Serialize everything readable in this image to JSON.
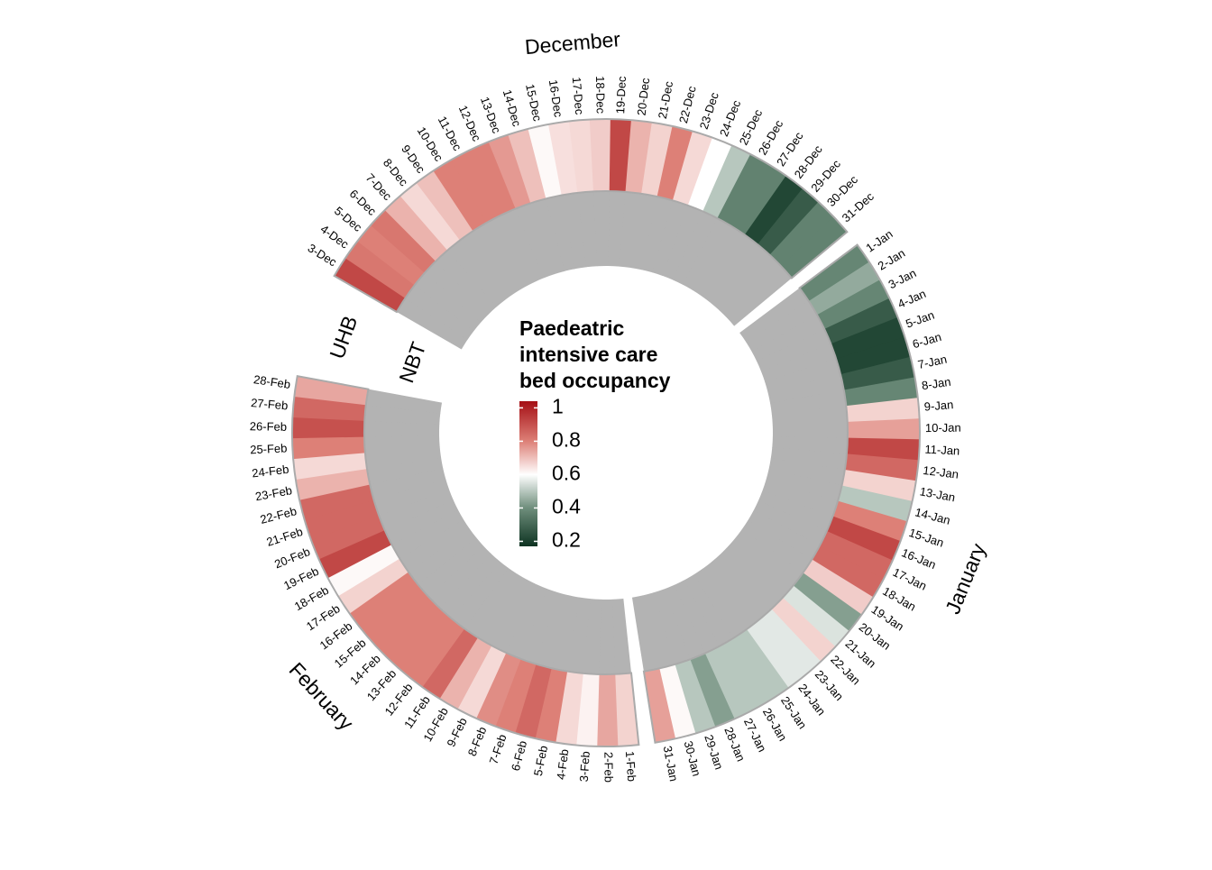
{
  "chart_data": {
    "type": "circular-heatmap",
    "legend_title": [
      "Paedeatric",
      "intensive care",
      "bed occupancy"
    ],
    "tracks": [
      "UHB",
      "NBT"
    ],
    "na_color": "#b3b3b3",
    "border_color": "#aaaaaa",
    "clim": [
      0.17,
      1.04
    ],
    "cticks": [
      0.2,
      0.4,
      0.6,
      0.8,
      1
    ],
    "color_stops": [
      {
        "value": 0.17,
        "color": "#0d3321"
      },
      {
        "value": 0.4,
        "color": "#6f8e7c"
      },
      {
        "value": 0.6,
        "color": "#ffffff"
      },
      {
        "value": 0.8,
        "color": "#dd8077"
      },
      {
        "value": 1.04,
        "color": "#a50f15"
      }
    ],
    "sectors": [
      {
        "name": "December",
        "categories": [
          "3-Dec",
          "4-Dec",
          "5-Dec",
          "6-Dec",
          "7-Dec",
          "8-Dec",
          "9-Dec",
          "10-Dec",
          "11-Dec",
          "12-Dec",
          "13-Dec",
          "14-Dec",
          "15-Dec",
          "16-Dec",
          "17-Dec",
          "18-Dec",
          "19-Dec",
          "20-Dec",
          "21-Dec",
          "22-Dec",
          "23-Dec",
          "24-Dec",
          "25-Dec",
          "26-Dec",
          "27-Dec",
          "28-Dec",
          "29-Dec",
          "30-Dec",
          "31-Dec"
        ],
        "values": [
          [
            0.92,
            0.82,
            0.8,
            0.82,
            0.72,
            0.66,
            0.7,
            0.8,
            0.8,
            0.8,
            0.76,
            0.7,
            0.61,
            0.65,
            0.66,
            0.68,
            0.92,
            0.72,
            0.67,
            0.8,
            0.66,
            0.6,
            0.5,
            0.37,
            0.37,
            0.22,
            0.27,
            0.37,
            0.37
          ],
          [
            null,
            null,
            null,
            null,
            null,
            null,
            null,
            null,
            null,
            null,
            null,
            null,
            null,
            null,
            null,
            null,
            null,
            null,
            null,
            null,
            null,
            null,
            null,
            null,
            null,
            null,
            null,
            null,
            null
          ]
        ]
      },
      {
        "name": "January",
        "categories": [
          "1-Jan",
          "2-Jan",
          "3-Jan",
          "4-Jan",
          "5-Jan",
          "6-Jan",
          "7-Jan",
          "8-Jan",
          "9-Jan",
          "10-Jan",
          "11-Jan",
          "12-Jan",
          "13-Jan",
          "14-Jan",
          "15-Jan",
          "16-Jan",
          "17-Jan",
          "18-Jan",
          "19-Jan",
          "20-Jan",
          "21-Jan",
          "22-Jan",
          "23-Jan",
          "24-Jan",
          "25-Jan",
          "26-Jan",
          "27-Jan",
          "28-Jan",
          "29-Jan",
          "30-Jan",
          "31-Jan"
        ],
        "values": [
          [
            0.38,
            0.45,
            0.38,
            0.27,
            0.22,
            0.22,
            0.27,
            0.38,
            0.67,
            0.75,
            0.92,
            0.85,
            0.67,
            0.5,
            0.8,
            0.92,
            0.85,
            0.85,
            0.68,
            0.43,
            0.55,
            0.67,
            0.56,
            0.56,
            0.5,
            0.5,
            0.5,
            0.43,
            0.5,
            0.61,
            0.75
          ],
          [
            null,
            null,
            null,
            null,
            null,
            null,
            null,
            null,
            null,
            null,
            null,
            null,
            null,
            null,
            null,
            null,
            null,
            null,
            null,
            null,
            null,
            null,
            null,
            null,
            null,
            null,
            null,
            null,
            null,
            null,
            null
          ]
        ]
      },
      {
        "name": "February",
        "categories": [
          "1-Feb",
          "2-Feb",
          "3-Feb",
          "4-Feb",
          "5-Feb",
          "6-Feb",
          "7-Feb",
          "8-Feb",
          "9-Feb",
          "10-Feb",
          "11-Feb",
          "12-Feb",
          "13-Feb",
          "14-Feb",
          "15-Feb",
          "16-Feb",
          "17-Feb",
          "18-Feb",
          "19-Feb",
          "20-Feb",
          "21-Feb",
          "22-Feb",
          "23-Feb",
          "24-Feb",
          "25-Feb",
          "26-Feb",
          "27-Feb",
          "28-Feb"
        ],
        "values": [
          [
            0.67,
            0.74,
            0.62,
            0.66,
            0.8,
            0.85,
            0.8,
            0.78,
            0.66,
            0.72,
            0.85,
            0.8,
            0.8,
            0.8,
            0.8,
            0.8,
            0.67,
            0.61,
            0.92,
            0.85,
            0.85,
            0.85,
            0.72,
            0.66,
            0.8,
            0.9,
            0.85,
            0.74
          ],
          [
            null,
            null,
            null,
            null,
            null,
            null,
            null,
            null,
            null,
            null,
            null,
            null,
            null,
            null,
            null,
            null,
            null,
            null,
            null,
            null,
            null,
            null,
            null,
            null,
            null,
            null,
            null,
            null
          ]
        ]
      }
    ]
  }
}
